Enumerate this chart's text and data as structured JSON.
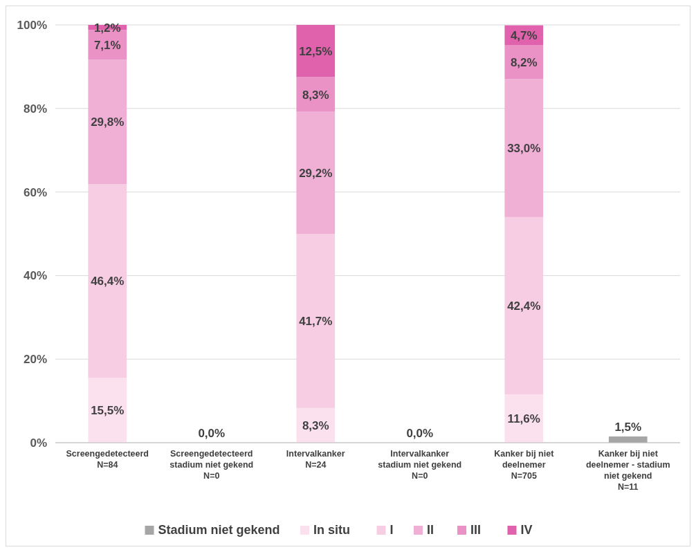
{
  "chart_data": {
    "type": "bar",
    "stacked": true,
    "grid": "y",
    "legend": "bottom",
    "categories": [
      "Screengedetecteerd\nN=84",
      "Screengedetecteerd\nstadium niet gekend\nN=0",
      "Intervalkanker\nN=24",
      "Intervalkanker\nstadium niet gekend\nN=0",
      "Kanker bij niet\ndeelnemer\nN=705",
      "Kanker bij niet\ndeelnemer - stadium\nniet gekend\nN=11"
    ],
    "ylim": [
      0,
      100
    ],
    "yticks": [
      {
        "value": 0,
        "label": "0%"
      },
      {
        "value": 20,
        "label": "20%"
      },
      {
        "value": 40,
        "label": "40%"
      },
      {
        "value": 60,
        "label": "60%"
      },
      {
        "value": 80,
        "label": "80%"
      },
      {
        "value": 100,
        "label": "100%"
      }
    ],
    "series": [
      {
        "name": "Stadium niet gekend",
        "color": "#a6a6a6",
        "values": [
          null,
          0,
          null,
          0,
          null,
          1.5
        ],
        "value_labels": [
          null,
          "0,0%",
          null,
          "0,0%",
          null,
          "1,5%"
        ]
      },
      {
        "name": "In situ",
        "color": "#fbe1ee",
        "values": [
          15.5,
          null,
          8.3,
          null,
          11.6,
          null
        ],
        "value_labels": [
          "15,5%",
          null,
          "8,3%",
          null,
          "11,6%",
          null
        ]
      },
      {
        "name": "I",
        "color": "#f6cde3",
        "values": [
          46.4,
          null,
          41.7,
          null,
          42.4,
          null
        ],
        "value_labels": [
          "46,4%",
          null,
          "41,7%",
          null,
          "42,4%",
          null
        ]
      },
      {
        "name": "II",
        "color": "#f0b0d5",
        "values": [
          29.8,
          null,
          29.2,
          null,
          33.0,
          null
        ],
        "value_labels": [
          "29,8%",
          null,
          "29,2%",
          null,
          "33,0%",
          null
        ]
      },
      {
        "name": "III",
        "color": "#ea92c5",
        "values": [
          7.1,
          null,
          8.3,
          null,
          8.2,
          null
        ],
        "value_labels": [
          "7,1%",
          null,
          "8,3%",
          null,
          "8,2%",
          null
        ]
      },
      {
        "name": "IV",
        "color": "#e062ad",
        "values": [
          1.2,
          null,
          12.5,
          null,
          4.7,
          null
        ],
        "value_labels": [
          "1,2%",
          null,
          "12,5%",
          null,
          "4,7%",
          null
        ]
      }
    ]
  }
}
